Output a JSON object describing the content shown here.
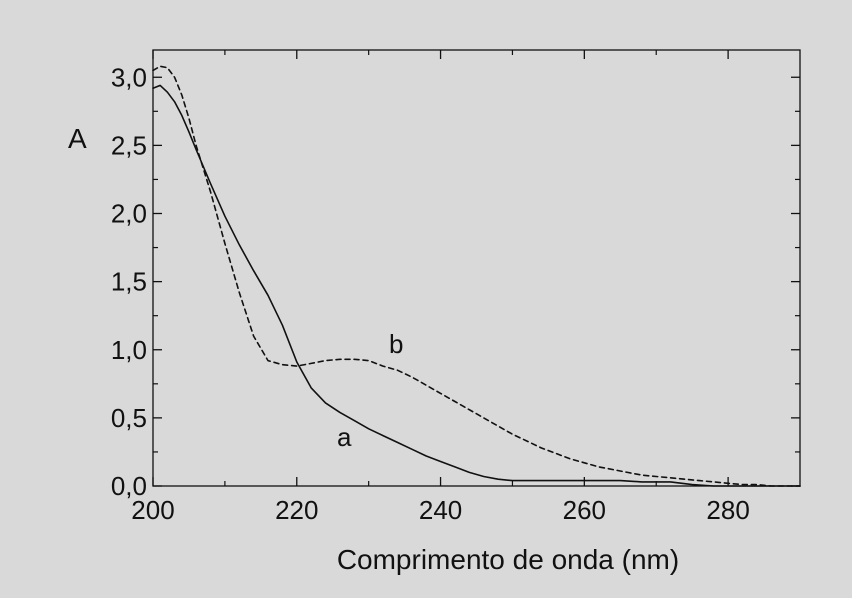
{
  "chart_data": {
    "type": "line",
    "title": "",
    "xlabel": "Comprimento de onda (nm)",
    "ylabel": "A",
    "xlim": [
      200,
      290
    ],
    "ylim": [
      0,
      3.2
    ],
    "x_ticks": [
      200,
      220,
      240,
      260,
      280
    ],
    "x_tick_labels": [
      "200",
      "220",
      "240",
      "260",
      "280"
    ],
    "y_ticks": [
      0,
      0.5,
      1.0,
      1.5,
      2.0,
      2.5,
      3.0
    ],
    "y_tick_labels": [
      "0,0",
      "0,5",
      "1,0",
      "1,5",
      "2,0",
      "2,5",
      "3,0"
    ],
    "grid": false,
    "legend": "none",
    "series": [
      {
        "name": "a",
        "style": "solid",
        "color": "#111111",
        "x": [
          200,
          201,
          202,
          203,
          204,
          205,
          206,
          208,
          210,
          212,
          214,
          216,
          218,
          220,
          222,
          224,
          226,
          228,
          230,
          232,
          234,
          236,
          238,
          240,
          242,
          244,
          246,
          248,
          250,
          252,
          255,
          258,
          260,
          262,
          265,
          268,
          270,
          272,
          275,
          278,
          280,
          285,
          290
        ],
        "y": [
          2.92,
          2.94,
          2.89,
          2.82,
          2.72,
          2.6,
          2.47,
          2.22,
          1.98,
          1.77,
          1.58,
          1.4,
          1.18,
          0.91,
          0.72,
          0.61,
          0.54,
          0.48,
          0.42,
          0.37,
          0.32,
          0.27,
          0.22,
          0.18,
          0.14,
          0.1,
          0.07,
          0.05,
          0.04,
          0.04,
          0.04,
          0.04,
          0.04,
          0.04,
          0.04,
          0.03,
          0.03,
          0.03,
          0.01,
          0.0,
          0.0,
          0.0,
          0.0
        ]
      },
      {
        "name": "b",
        "style": "dashed",
        "color": "#111111",
        "x": [
          200,
          201,
          202,
          203,
          204,
          205,
          206,
          208,
          210,
          212,
          214,
          216,
          218,
          220,
          222,
          224,
          226,
          228,
          230,
          232,
          234,
          236,
          238,
          240,
          242,
          244,
          246,
          248,
          250,
          252,
          254,
          256,
          258,
          260,
          262,
          264,
          266,
          268,
          270,
          272,
          274,
          276,
          278,
          280,
          282,
          284,
          286,
          288,
          290
        ],
        "y": [
          3.05,
          3.08,
          3.07,
          3.0,
          2.87,
          2.7,
          2.5,
          2.16,
          1.78,
          1.42,
          1.1,
          0.92,
          0.89,
          0.88,
          0.9,
          0.92,
          0.93,
          0.93,
          0.92,
          0.88,
          0.85,
          0.8,
          0.74,
          0.68,
          0.62,
          0.56,
          0.5,
          0.44,
          0.38,
          0.33,
          0.28,
          0.24,
          0.2,
          0.17,
          0.14,
          0.12,
          0.1,
          0.08,
          0.07,
          0.06,
          0.05,
          0.04,
          0.03,
          0.02,
          0.01,
          0.01,
          0.0,
          0.0,
          0.0
        ]
      }
    ]
  }
}
